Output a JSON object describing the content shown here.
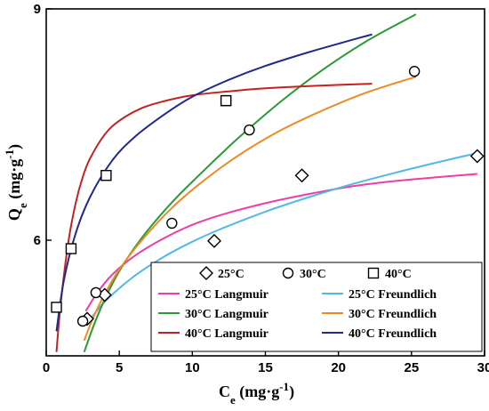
{
  "chart_data": {
    "type": "scatter",
    "xlabel": {
      "main": "C",
      "sub": "e",
      "units": " (mg·g",
      "sup": "-1",
      "close": ")"
    },
    "ylabel": {
      "main": "Q",
      "sub": "e",
      "units": " (mg·g",
      "sup": "-1",
      "close": ")"
    },
    "xlim": [
      0,
      30
    ],
    "ylim": [
      4.5,
      9
    ],
    "x_ticks": [
      0,
      5,
      10,
      15,
      20,
      25,
      30
    ],
    "y_ticks": [
      6,
      9
    ],
    "scatter_series": [
      {
        "name": "25°C",
        "marker": "diamond",
        "x": [
          2.8,
          4.0,
          11.5,
          17.5,
          29.5
        ],
        "y": [
          4.98,
          5.29,
          5.99,
          6.84,
          7.09
        ]
      },
      {
        "name": "30°C",
        "marker": "circle",
        "x": [
          2.5,
          3.4,
          8.6,
          13.9,
          25.2
        ],
        "y": [
          4.95,
          5.32,
          6.22,
          7.43,
          8.19
        ]
      },
      {
        "name": "40°C",
        "marker": "square",
        "x": [
          0.7,
          1.7,
          4.1,
          12.3,
          12.3
        ],
        "y": [
          5.13,
          5.89,
          6.84,
          7.81,
          7.81
        ]
      }
    ],
    "fit_series": [
      {
        "name": "25°C Langmuir",
        "color": "#ee3ea6",
        "x": [
          2.7,
          3.5,
          4.5,
          6,
          8,
          10,
          12,
          15,
          18,
          21,
          24,
          27,
          29.5
        ],
        "y": [
          5.08,
          5.32,
          5.55,
          5.79,
          6.02,
          6.2,
          6.33,
          6.48,
          6.6,
          6.7,
          6.77,
          6.82,
          6.86
        ]
      },
      {
        "name": "25°C Freundlich",
        "color": "#52b8e6",
        "x": [
          2.8,
          4,
          6,
          8,
          10,
          12,
          15,
          18,
          21,
          24,
          27,
          29.5
        ],
        "y": [
          4.92,
          5.2,
          5.53,
          5.78,
          5.98,
          6.15,
          6.37,
          6.56,
          6.73,
          6.88,
          7.02,
          7.13
        ]
      },
      {
        "name": "30°C Langmuir",
        "color": "#2a9a36",
        "x": [
          2.6,
          3.2,
          4,
          5,
          6.5,
          8.5,
          10.5,
          13,
          16,
          19,
          22,
          25.3
        ],
        "y": [
          4.55,
          4.87,
          5.23,
          5.6,
          6.02,
          6.47,
          6.85,
          7.3,
          7.79,
          8.22,
          8.59,
          8.93
        ]
      },
      {
        "name": "30°C Freundlich",
        "color": "#ef8a22",
        "x": [
          2.6,
          3.2,
          4,
          5,
          6.5,
          8.5,
          10.5,
          13,
          16,
          19,
          22,
          25.3
        ],
        "y": [
          4.7,
          4.99,
          5.3,
          5.62,
          5.99,
          6.4,
          6.73,
          7.08,
          7.42,
          7.69,
          7.92,
          8.12
        ]
      },
      {
        "name": "40°C Langmuir",
        "color": "#c42222",
        "x": [
          0.7,
          1.0,
          1.5,
          2.0,
          2.5,
          3.0,
          4.0,
          5.0,
          6.5,
          8.0,
          10,
          12.5,
          15,
          18,
          22.3
        ],
        "y": [
          4.55,
          5.19,
          5.96,
          6.47,
          6.82,
          7.06,
          7.37,
          7.55,
          7.71,
          7.8,
          7.88,
          7.93,
          7.97,
          8.0,
          8.03
        ]
      },
      {
        "name": "40°C Freundlich",
        "color": "#1f2a8c",
        "x": [
          0.7,
          1.2,
          2.0,
          3.0,
          4.5,
          6.0,
          8.0,
          10,
          12.5,
          15,
          18,
          22.3
        ],
        "y": [
          4.82,
          5.47,
          6.08,
          6.56,
          7.03,
          7.33,
          7.62,
          7.86,
          8.08,
          8.26,
          8.44,
          8.67
        ]
      }
    ],
    "legend": {
      "marker_row": [
        {
          "label": "25°C",
          "marker": "diamond"
        },
        {
          "label": "30°C",
          "marker": "circle"
        },
        {
          "label": "40°C",
          "marker": "square"
        }
      ],
      "line_rows": [
        [
          {
            "label": "25°C Langmuir",
            "color": "#ee3ea6"
          },
          {
            "label": "25°C Freundlich",
            "color": "#52b8e6"
          }
        ],
        [
          {
            "label": "30°C Langmuir",
            "color": "#2a9a36"
          },
          {
            "label": "30°C Freundlich",
            "color": "#ef8a22"
          }
        ],
        [
          {
            "label": "40°C Langmuir",
            "color": "#c42222"
          },
          {
            "label": "40°C Freundlich",
            "color": "#1f2a8c"
          }
        ]
      ],
      "position": "bottom-right"
    },
    "grid": false
  }
}
